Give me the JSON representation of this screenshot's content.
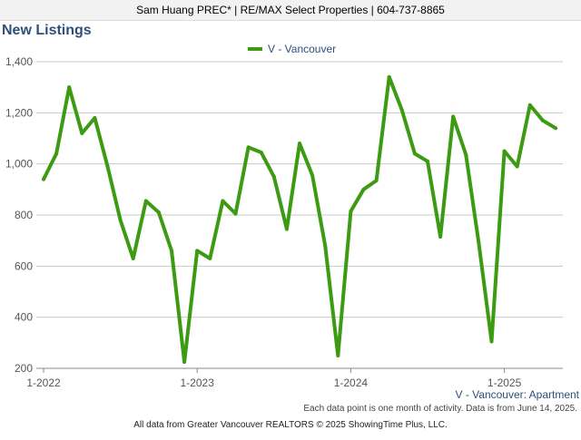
{
  "header": {
    "banner": "Sam Huang PREC* | RE/MAX Select Properties | 604-737-8865",
    "title": "New Listings"
  },
  "footer": {
    "note": "Each data point is one month of activity. Data is from June 14, 2025.",
    "credit": "All data from Greater Vancouver REALTORS © 2025 ShowingTime Plus, LLC."
  },
  "colors": {
    "series": "#3c9b12",
    "grid": "#c8c8c8",
    "axis_text": "#555555",
    "legend_text": "#2e4f7a"
  },
  "chart_data": {
    "type": "line",
    "title": "",
    "xlabel": "",
    "ylabel": "",
    "ylim": [
      200,
      1400
    ],
    "yticks": [
      200,
      400,
      600,
      800,
      1000,
      1200,
      1400
    ],
    "ytick_labels": [
      "200",
      "400",
      "600",
      "800",
      "1,000",
      "1,200",
      "1,400"
    ],
    "xtick_labels": [
      "1-2022",
      "1-2023",
      "1-2024",
      "1-2025"
    ],
    "xtick_index": [
      0,
      12,
      24,
      36
    ],
    "grid": true,
    "legend": "top-center",
    "legend_label": "V - Vancouver",
    "series_label": "V - Vancouver: Apartment",
    "series": [
      {
        "name": "V - Vancouver",
        "values": [
          940,
          1040,
          1300,
          1120,
          1180,
          990,
          780,
          630,
          855,
          810,
          660,
          225,
          660,
          630,
          855,
          805,
          1065,
          1045,
          950,
          745,
          1080,
          955,
          680,
          250,
          815,
          900,
          935,
          1340,
          1210,
          1040,
          1010,
          715,
          1185,
          1035,
          690,
          305,
          1050,
          990,
          1230,
          1170,
          1140
        ]
      }
    ]
  }
}
